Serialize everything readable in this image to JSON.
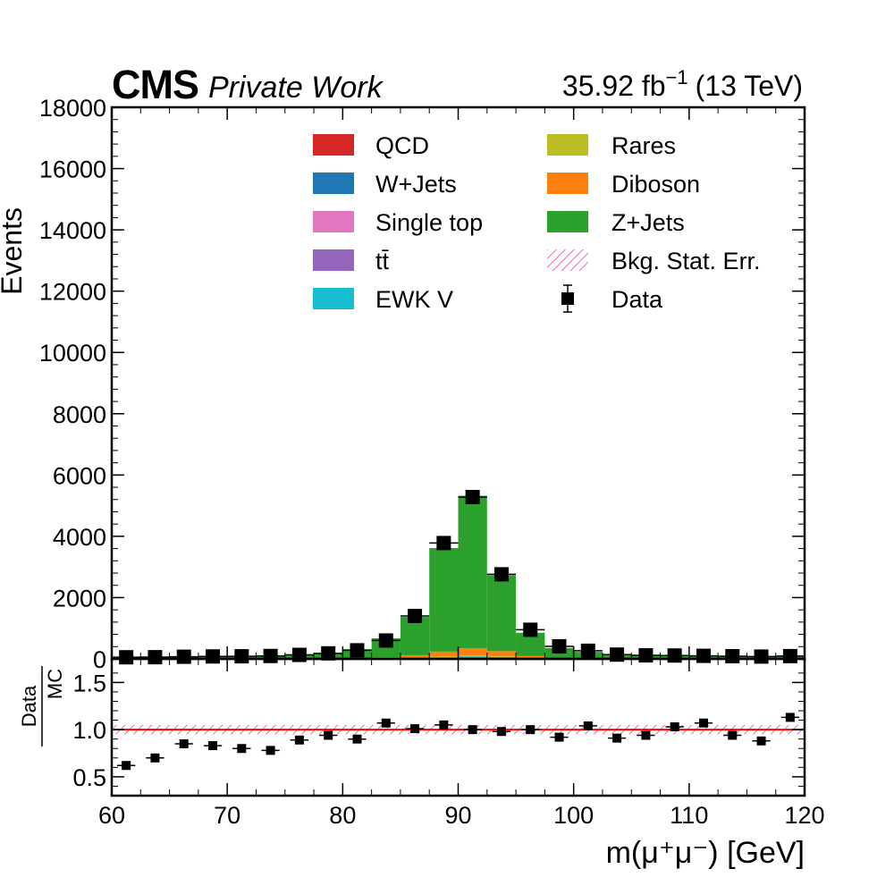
{
  "header": {
    "cms_label": "CMS",
    "status_label": "Private Work",
    "lumi_value": "35.92 fb",
    "lumi_exponent": "−1",
    "energy": "(13 TeV)"
  },
  "chart_data": [
    {
      "type": "bar",
      "stacked": true,
      "panel": "main",
      "ylabel": "Events",
      "xlim": [
        60,
        120
      ],
      "ylim": [
        0,
        18000
      ],
      "yticks": [
        0,
        2000,
        4000,
        6000,
        8000,
        10000,
        12000,
        14000,
        16000,
        18000
      ],
      "bin_edges": [
        60,
        62.5,
        65,
        67.5,
        70,
        72.5,
        75,
        77.5,
        80,
        82.5,
        85,
        87.5,
        90,
        92.5,
        95,
        97.5,
        100,
        102.5,
        105,
        107.5,
        110,
        112.5,
        115,
        117.5,
        120
      ],
      "series": [
        {
          "name": "QCD",
          "color": "#d62728",
          "values": [
            0,
            0,
            0,
            0,
            0,
            0,
            0,
            0,
            0,
            0,
            0,
            0,
            0,
            0,
            0,
            0,
            0,
            0,
            0,
            0,
            0,
            0,
            0,
            0
          ]
        },
        {
          "name": "W+Jets",
          "color": "#1f77b4",
          "values": [
            0,
            0,
            0,
            0,
            0,
            0,
            0,
            0,
            0,
            0,
            0,
            0,
            0,
            0,
            0,
            0,
            0,
            0,
            0,
            0,
            0,
            0,
            0,
            0
          ]
        },
        {
          "name": "Single top",
          "color": "#e377c2",
          "values": [
            0,
            0,
            0,
            0,
            0,
            0,
            0,
            0,
            0,
            0,
            0,
            0,
            0,
            0,
            0,
            0,
            0,
            0,
            0,
            0,
            0,
            0,
            0,
            0
          ]
        },
        {
          "name": "tt̄",
          "color": "#9467bd",
          "values": [
            2,
            2,
            2,
            2,
            2,
            2,
            2,
            2,
            2,
            2,
            2,
            2,
            2,
            2,
            2,
            2,
            2,
            2,
            2,
            2,
            2,
            2,
            2,
            2
          ]
        },
        {
          "name": "EWK V",
          "color": "#17becf",
          "values": [
            0,
            0,
            0,
            1,
            1,
            1,
            2,
            3,
            5,
            10,
            25,
            50,
            80,
            60,
            20,
            8,
            4,
            2,
            1,
            1,
            0,
            0,
            0,
            0
          ]
        },
        {
          "name": "Rares",
          "color": "#bcbd22",
          "values": [
            1,
            1,
            1,
            1,
            1,
            2,
            2,
            3,
            4,
            8,
            12,
            25,
            30,
            20,
            10,
            5,
            3,
            2,
            1,
            1,
            1,
            1,
            1,
            1
          ]
        },
        {
          "name": "Diboson",
          "color": "#ff7f0e",
          "values": [
            2,
            2,
            3,
            3,
            3,
            4,
            5,
            8,
            15,
            30,
            80,
            160,
            230,
            170,
            60,
            20,
            10,
            6,
            4,
            3,
            3,
            2,
            2,
            2
          ]
        },
        {
          "name": "Z+Jets",
          "color": "#2ca02c",
          "values": [
            75,
            75,
            80,
            88,
            95,
            110,
            140,
            180,
            290,
            620,
            1250,
            3380,
            4980,
            2480,
            760,
            320,
            210,
            150,
            115,
            100,
            85,
            80,
            75,
            70
          ]
        }
      ],
      "bkg_stat_err_label": "Bkg. Stat. Err.",
      "data": {
        "name": "Data",
        "values": [
          52,
          55,
          70,
          80,
          85,
          95,
          130,
          180,
          280,
          600,
          1400,
          3780,
          5280,
          2760,
          950,
          410,
          265,
          140,
          115,
          110,
          100,
          88,
          75,
          90
        ]
      },
      "legend": {
        "placement": "top-center",
        "columns": 2
      }
    },
    {
      "type": "scatter",
      "panel": "ratio",
      "ylabel_numerator": "Data",
      "ylabel_denominator": "MC",
      "xlabel": "m(μ⁺μ⁻) [GeV]",
      "xlim": [
        60,
        120
      ],
      "ylim": [
        0.3,
        1.75
      ],
      "yticks": [
        0.5,
        1.0,
        1.5
      ],
      "ytick_labels": [
        "0.5",
        "1.0",
        "1.5"
      ],
      "xticks": [
        60,
        70,
        80,
        90,
        100,
        110,
        120
      ],
      "reference_line": 1.0,
      "bin_edges": [
        60,
        62.5,
        65,
        67.5,
        70,
        72.5,
        75,
        77.5,
        80,
        82.5,
        85,
        87.5,
        90,
        92.5,
        95,
        97.5,
        100,
        102.5,
        105,
        107.5,
        110,
        112.5,
        115,
        117.5,
        120
      ],
      "values": [
        0.62,
        0.7,
        0.85,
        0.83,
        0.8,
        0.78,
        0.89,
        0.94,
        0.9,
        1.07,
        1.01,
        1.05,
        1.0,
        0.98,
        1.0,
        0.92,
        1.04,
        0.91,
        0.94,
        1.03,
        1.07,
        0.94,
        0.88,
        1.13
      ],
      "errors": [
        0.04,
        0.04,
        0.03,
        0.03,
        0.03,
        0.03,
        0.03,
        0.03,
        0.02,
        0.02,
        0.01,
        0.01,
        0.01,
        0.01,
        0.01,
        0.02,
        0.02,
        0.02,
        0.03,
        0.03,
        0.03,
        0.03,
        0.03,
        0.03
      ],
      "bkg_stat_err_band": 0.05
    }
  ]
}
